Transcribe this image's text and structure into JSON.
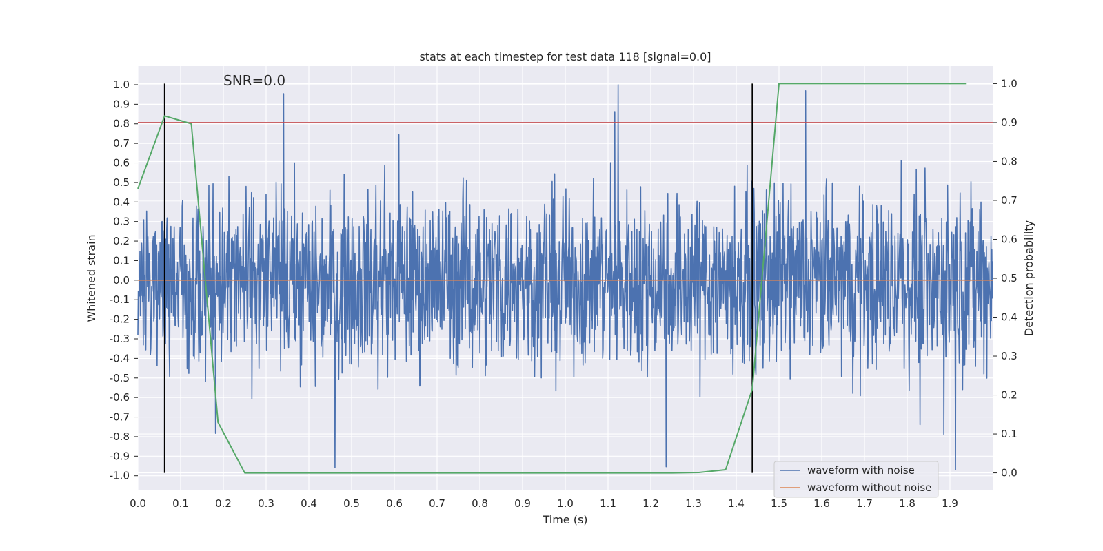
{
  "chart_data": {
    "type": "line",
    "title": "stats at each timestep for test data 118 [signal=0.0]",
    "xlabel": "Time (s)",
    "ylabel": "Whitened strain",
    "y2label": "Detection probability",
    "annotation": "SNR=0.0",
    "xlim": [
      0.0,
      2.0
    ],
    "ylim": [
      -1.075,
      1.095
    ],
    "y2lim": [
      -0.045,
      1.045
    ],
    "xticks": [
      "0.0",
      "0.1",
      "0.2",
      "0.3",
      "0.4",
      "0.5",
      "0.6",
      "0.7",
      "0.8",
      "0.9",
      "1.0",
      "1.1",
      "1.2",
      "1.3",
      "1.4",
      "1.5",
      "1.6",
      "1.7",
      "1.8",
      "1.9"
    ],
    "yticks": [
      "1.0",
      "0.9",
      "0.8",
      "0.7",
      "0.6",
      "0.5",
      "0.4",
      "0.3",
      "0.2",
      "0.1",
      "0.0",
      "-0.1",
      "-0.2",
      "-0.3",
      "-0.4",
      "-0.5",
      "-0.6",
      "-0.7",
      "-0.8",
      "-0.9",
      "-1.0"
    ],
    "y2ticks": [
      "1.0",
      "0.9",
      "0.8",
      "0.7",
      "0.6",
      "0.5",
      "0.4",
      "0.3",
      "0.2",
      "0.1",
      "0.0"
    ],
    "grid": true,
    "legend_position": "lower right",
    "threshold": 0.9,
    "vertical_lines": [
      0.0625,
      1.4375
    ],
    "series": [
      {
        "name": "waveform with noise",
        "color": "#4c72b0",
        "axis": "left",
        "noise": {
          "samples": 2048,
          "spread": 0.22,
          "min": -0.97,
          "max": 1.0
        }
      },
      {
        "name": "waveform without noise",
        "color": "#dd8452",
        "axis": "left",
        "x": [
          0.0,
          2.0
        ],
        "y": [
          0.0,
          0.0
        ]
      },
      {
        "color": "#55a868",
        "axis": "right",
        "x": [
          0.0,
          0.0625,
          0.125,
          0.1875,
          0.25,
          0.3125,
          0.375,
          1.25,
          1.3125,
          1.375,
          1.4375,
          1.5,
          1.5625,
          1.625,
          1.875,
          1.9375
        ],
        "y": [
          0.73,
          0.917,
          0.897,
          0.13,
          0.0,
          0.0,
          0.0,
          0.0,
          0.001,
          0.008,
          0.215,
          1.0,
          1.0,
          1.0,
          1.0,
          1.0
        ]
      }
    ],
    "colors": {
      "plot_background": "#eaeaf2",
      "grid": "#ffffff",
      "threshold_line": "#c44e52",
      "vertical_line": "#000000"
    }
  }
}
